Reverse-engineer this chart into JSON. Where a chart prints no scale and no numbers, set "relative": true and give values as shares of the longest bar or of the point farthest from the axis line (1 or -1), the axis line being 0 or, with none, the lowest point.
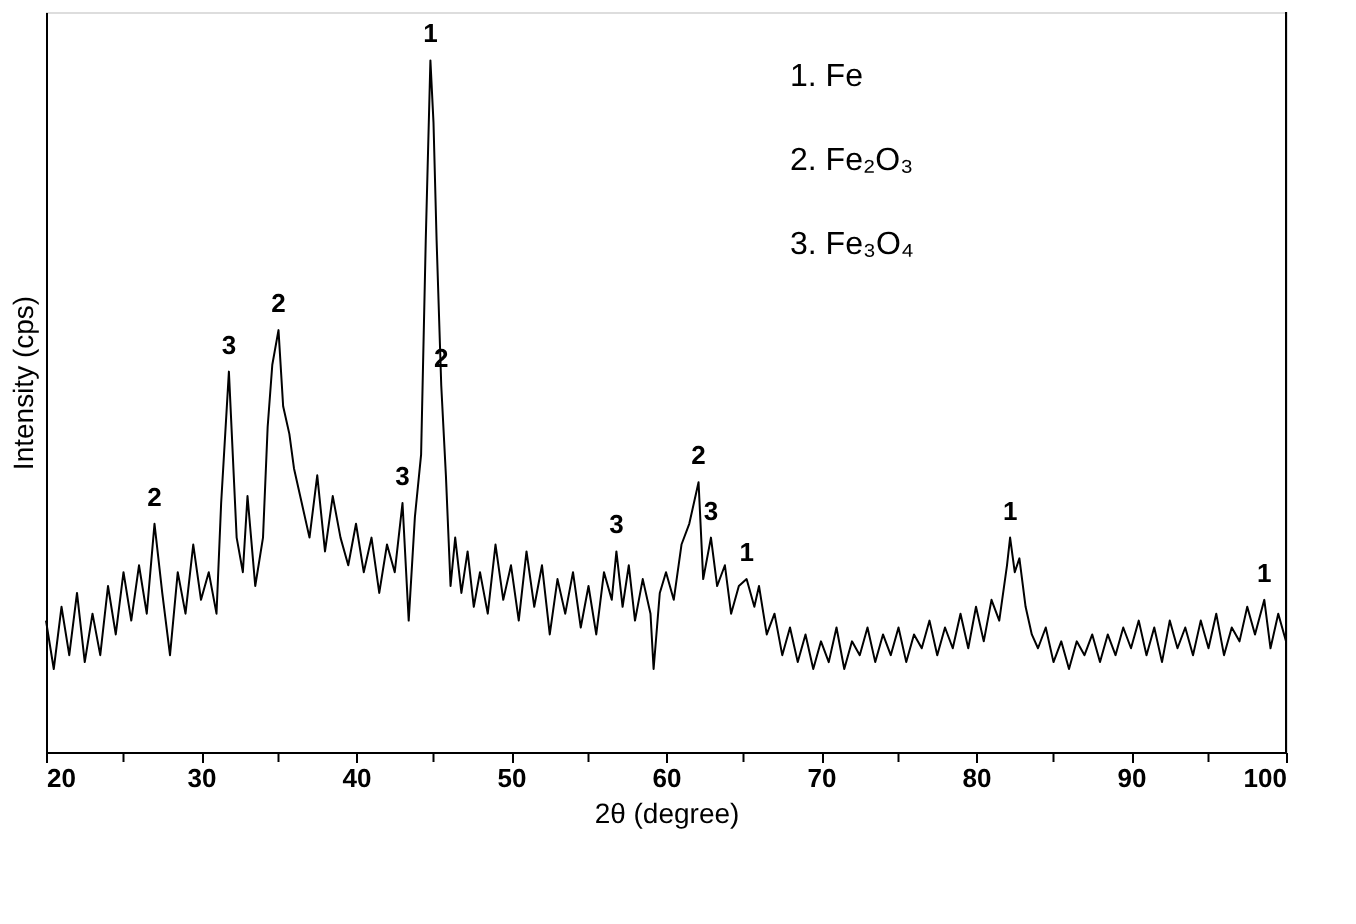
{
  "chart_data": {
    "type": "line",
    "relative": true,
    "xlabel": "2θ (degree)",
    "ylabel": "Intensity (cps)",
    "xlim": [
      20,
      100
    ],
    "xticks": [
      20,
      {
        "value": 25,
        "label": null
      },
      30,
      {
        "value": 35,
        "label": null
      },
      40,
      {
        "value": 45,
        "label": null
      },
      50,
      {
        "value": 55,
        "label": null
      },
      60,
      {
        "value": 65,
        "label": null
      },
      70,
      {
        "value": 75,
        "label": null
      },
      80,
      {
        "value": 85,
        "label": null
      },
      90,
      {
        "value": 95,
        "label": null
      },
      100
    ],
    "tick_labels": "x",
    "grid": false,
    "marker": "none",
    "line_style": "solid",
    "x": [
      20,
      20.5,
      21,
      21.5,
      22,
      22.5,
      23,
      23.5,
      24,
      24.5,
      25,
      25.5,
      26,
      26.5,
      27,
      27.5,
      28,
      28.5,
      29,
      29.5,
      30,
      30.5,
      31,
      31.3,
      31.8,
      32.3,
      32.7,
      33,
      33.5,
      34,
      34.3,
      34.6,
      35,
      35.3,
      35.7,
      36,
      36.5,
      37,
      37.5,
      38,
      38.5,
      39,
      39.5,
      40,
      40.5,
      41,
      41.5,
      42,
      42.5,
      43,
      43.4,
      43.8,
      44.2,
      44.5,
      44.8,
      45,
      45.2,
      45.5,
      45.8,
      46.1,
      46.4,
      46.8,
      47.2,
      47.6,
      48,
      48.5,
      49,
      49.5,
      50,
      50.5,
      51,
      51.5,
      52,
      52.5,
      53,
      53.5,
      54,
      54.5,
      55,
      55.5,
      56,
      56.5,
      56.8,
      57.2,
      57.6,
      58,
      58.5,
      59,
      59.2,
      59.6,
      60,
      60.5,
      61,
      61.5,
      62.1,
      62.4,
      62.9,
      63.3,
      63.8,
      64.2,
      64.7,
      65.2,
      65.7,
      66,
      66.5,
      67,
      67.5,
      68,
      68.5,
      69,
      69.5,
      70,
      70.5,
      71,
      71.5,
      72,
      72.5,
      73,
      73.5,
      74,
      74.5,
      75,
      75.5,
      76,
      76.5,
      77,
      77.5,
      78,
      78.5,
      79,
      79.5,
      80,
      80.5,
      81,
      81.5,
      82,
      82.2,
      82.5,
      82.8,
      83.2,
      83.6,
      84,
      84.5,
      85,
      85.5,
      86,
      86.5,
      87,
      87.5,
      88,
      88.5,
      89,
      89.5,
      90,
      90.5,
      91,
      91.5,
      92,
      92.5,
      93,
      93.5,
      94,
      94.5,
      95,
      95.5,
      96,
      96.5,
      97,
      97.5,
      98,
      98.6,
      99,
      99.5,
      100
    ],
    "series": [
      {
        "color": "#000000",
        "values": [
          0.19,
          0.12,
          0.21,
          0.14,
          0.23,
          0.13,
          0.2,
          0.14,
          0.24,
          0.17,
          0.26,
          0.19,
          0.27,
          0.2,
          0.33,
          0.23,
          0.14,
          0.26,
          0.2,
          0.3,
          0.22,
          0.26,
          0.2,
          0.36,
          0.55,
          0.31,
          0.26,
          0.37,
          0.24,
          0.31,
          0.47,
          0.56,
          0.61,
          0.5,
          0.46,
          0.41,
          0.36,
          0.31,
          0.4,
          0.29,
          0.37,
          0.31,
          0.27,
          0.33,
          0.26,
          0.31,
          0.23,
          0.3,
          0.26,
          0.36,
          0.19,
          0.34,
          0.43,
          0.74,
          1,
          0.91,
          0.74,
          0.53,
          0.4,
          0.24,
          0.31,
          0.23,
          0.29,
          0.21,
          0.26,
          0.2,
          0.3,
          0.22,
          0.27,
          0.19,
          0.29,
          0.21,
          0.27,
          0.17,
          0.25,
          0.2,
          0.26,
          0.18,
          0.24,
          0.17,
          0.26,
          0.22,
          0.29,
          0.21,
          0.27,
          0.19,
          0.25,
          0.2,
          0.12,
          0.23,
          0.26,
          0.22,
          0.3,
          0.33,
          0.39,
          0.25,
          0.31,
          0.24,
          0.27,
          0.2,
          0.24,
          0.25,
          0.21,
          0.24,
          0.17,
          0.2,
          0.14,
          0.18,
          0.13,
          0.17,
          0.12,
          0.16,
          0.13,
          0.18,
          0.12,
          0.16,
          0.14,
          0.18,
          0.13,
          0.17,
          0.14,
          0.18,
          0.13,
          0.17,
          0.15,
          0.19,
          0.14,
          0.18,
          0.15,
          0.2,
          0.15,
          0.21,
          0.16,
          0.22,
          0.19,
          0.27,
          0.31,
          0.26,
          0.28,
          0.21,
          0.17,
          0.15,
          0.18,
          0.13,
          0.16,
          0.12,
          0.16,
          0.14,
          0.17,
          0.13,
          0.17,
          0.14,
          0.18,
          0.15,
          0.19,
          0.14,
          0.18,
          0.13,
          0.19,
          0.15,
          0.18,
          0.14,
          0.19,
          0.15,
          0.2,
          0.14,
          0.18,
          0.16,
          0.21,
          0.17,
          0.22,
          0.15,
          0.2,
          0.16
        ]
      }
    ],
    "annotations": [
      {
        "text": "2",
        "x": 27,
        "y": 0.33
      },
      {
        "text": "3",
        "x": 31.8,
        "y": 0.55
      },
      {
        "text": "2",
        "x": 35,
        "y": 0.61
      },
      {
        "text": "3",
        "x": 43,
        "y": 0.36
      },
      {
        "text": "1",
        "x": 44.8,
        "y": 1
      },
      {
        "text": "2",
        "x": 45.5,
        "y": 0.53
      },
      {
        "text": "3",
        "x": 56.8,
        "y": 0.29
      },
      {
        "text": "2",
        "x": 62.1,
        "y": 0.39
      },
      {
        "text": "3",
        "x": 62.9,
        "y": 0.31
      },
      {
        "text": "1",
        "x": 65.2,
        "y": 0.25
      },
      {
        "text": "1",
        "x": 82.2,
        "y": 0.31
      },
      {
        "text": "1",
        "x": 98.6,
        "y": 0.22
      },
      "1. Fe",
      "2. Fe₂O₃",
      "3. Fe₃O₄"
    ]
  }
}
